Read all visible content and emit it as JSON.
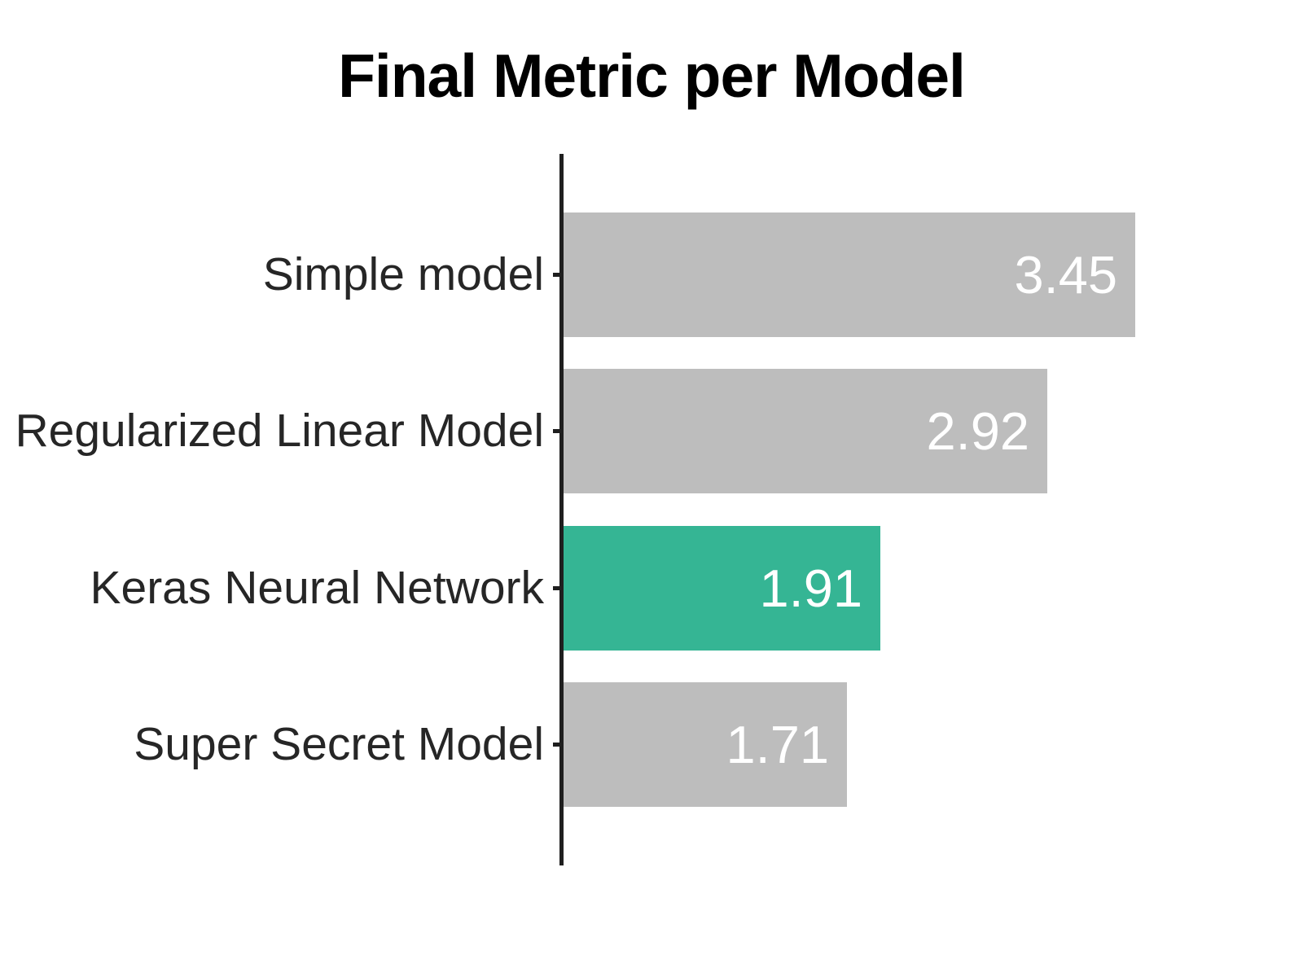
{
  "chart_data": {
    "type": "bar",
    "orientation": "horizontal",
    "title": "Final Metric per Model",
    "categories": [
      "Simple model",
      "Regularized Linear Model",
      "Keras Neural Network",
      "Super Secret Model"
    ],
    "values": [
      3.45,
      2.92,
      1.91,
      1.71
    ],
    "value_labels": [
      "3.45",
      "2.92",
      "1.91",
      "1.71"
    ],
    "highlight_index": 2,
    "highlight_category": "Keras Neural Network",
    "xlim": [
      0,
      3.45
    ],
    "xlabel": "",
    "ylabel": "",
    "grid": false,
    "legend": "none",
    "value_label_position": "inside-end",
    "colors": {
      "bar_default": "#bdbdbd",
      "bar_highlight": "#35b594",
      "value_text": "#ffffff",
      "label_text": "#262626",
      "axis_line": "#1f1f1f",
      "title_text": "#000000",
      "background": "#ffffff"
    }
  }
}
